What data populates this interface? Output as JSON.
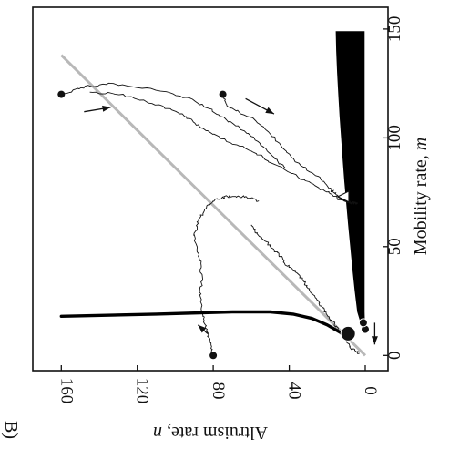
{
  "chart_data": {
    "type": "line",
    "panel_label": "B)",
    "xlabel": "Mobility rate, ",
    "xlabel_var": "m",
    "ylabel": "Altruism rate, ",
    "ylabel_var": "n",
    "xlim": [
      -7,
      160
    ],
    "ylim": [
      -12,
      175
    ],
    "x_ticks": [
      0,
      50,
      100,
      150
    ],
    "y_ticks": [
      0,
      40,
      80,
      120,
      160
    ],
    "grid": false,
    "colors": {
      "trajectory": "#111111",
      "nullcline": "#000000",
      "diagonal": "#b8b8b8",
      "region": "#000000"
    },
    "region": {
      "name": "",
      "x": [
        149,
        140,
        130,
        120,
        110,
        100,
        90,
        80,
        70,
        60,
        50,
        40,
        30,
        20,
        15,
        15,
        20,
        30,
        40,
        50,
        60,
        70,
        80,
        90,
        100,
        110,
        120,
        130,
        140,
        149
      ],
      "y": [
        15.5,
        15.3,
        14.8,
        14.2,
        13.5,
        12.7,
        11.9,
        11.0,
        10.0,
        9.0,
        7.9,
        6.8,
        5.6,
        4.2,
        2.5,
        0.2,
        0.3,
        0.3,
        0.3,
        0.3,
        0.3,
        0.3,
        0.3,
        0.3,
        0.3,
        0.3,
        0.3,
        0.3,
        0.3,
        0.3
      ]
    },
    "nullcline": {
      "x": [
        18,
        19,
        20,
        20,
        19,
        17,
        14,
        11,
        9
      ],
      "y": [
        160,
        110,
        70,
        50,
        38,
        28,
        20,
        14,
        10
      ]
    },
    "diagonal": {
      "x": [
        0,
        138
      ],
      "y": [
        0,
        160
      ]
    },
    "series": [
      {
        "start": [
          80,
          0
        ],
        "x": [
          0,
          7,
          13,
          20,
          27,
          35,
          45,
          55,
          62,
          68,
          72,
          73,
          73,
          71
        ],
        "y": [
          80,
          82,
          84,
          86,
          87,
          86,
          87,
          90,
          88,
          84,
          78,
          72,
          64,
          56
        ]
      },
      {
        "start": [
          75,
          120
        ],
        "x": [
          120,
          115,
          108,
          100,
          90,
          82,
          76,
          73,
          71,
          70,
          70
        ],
        "y": [
          75,
          73,
          58,
          48,
          38,
          25,
          18,
          14,
          10,
          6,
          4
        ]
      },
      {
        "start": [
          160,
          120
        ],
        "x": [
          120,
          123,
          125,
          122,
          118,
          112,
          105,
          98,
          92,
          86
        ],
        "y": [
          160,
          150,
          135,
          110,
          92,
          80,
          67,
          56,
          49,
          42
        ]
      },
      {
        "x": [
          121,
          120,
          115,
          110,
          105,
          100,
          94,
          88,
          82,
          76,
          72,
          70,
          70
        ],
        "y": [
          145,
          130,
          108,
          95,
          87,
          76,
          60,
          48,
          35,
          22,
          14,
          8,
          5
        ]
      },
      {
        "x": [
          60,
          56,
          52,
          47,
          42,
          37,
          31,
          25,
          19,
          13,
          8,
          3,
          1
        ],
        "y": [
          60,
          57,
          52,
          46,
          42,
          35,
          30,
          25,
          20,
          15,
          11,
          7,
          3
        ]
      }
    ],
    "points": [
      {
        "x": 12,
        "y": 0
      },
      {
        "x": 15,
        "y": 1
      },
      {
        "x": 10,
        "y": 9
      }
    ],
    "open_marker": {
      "x": 73,
      "y": 11
    },
    "arrows": [
      {
        "from": [
          118,
          63
        ],
        "to": [
          111,
          48
        ]
      },
      {
        "from": [
          112,
          148
        ],
        "to": [
          114,
          134
        ]
      },
      {
        "from": [
          10,
          83
        ],
        "to": [
          14,
          88
        ]
      },
      {
        "from": [
          15,
          -5
        ],
        "to": [
          5,
          -5
        ]
      }
    ]
  }
}
